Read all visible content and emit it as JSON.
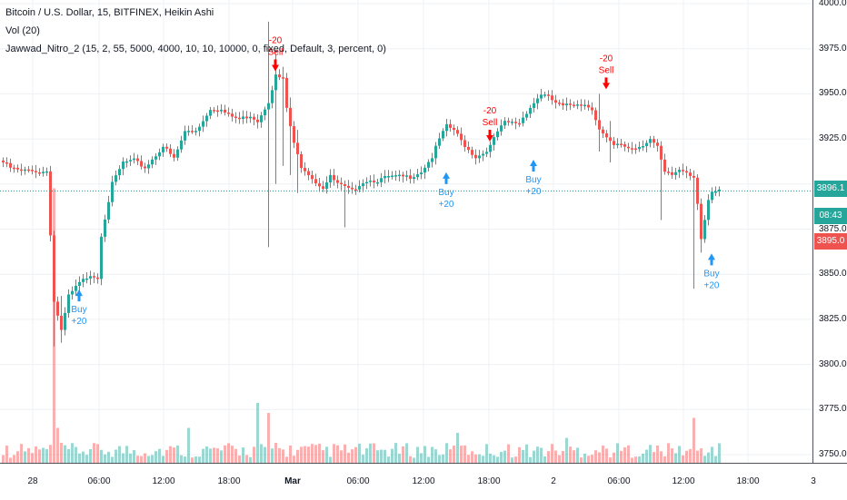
{
  "legend": {
    "title": "Bitcoin / U.S. Dollar, 15, BITFINEX, Heikin Ashi",
    "volume": "Vol (20)",
    "indicator": "Jawwad_Nitro_2 (15, 2, 55, 5000, 4000, 10, 10, 10000, 0, fixed, Default, 3, percent, 0)"
  },
  "price_axis": {
    "ticks": [
      "4000.0",
      "3975.0",
      "3950.0",
      "3925.0",
      "3875.0",
      "3850.0",
      "3825.0",
      "3800.0",
      "3775.0",
      "3750.0"
    ]
  },
  "time_axis": {
    "ticks": [
      "28",
      "06:00",
      "12:00",
      "18:00",
      "Mar",
      "06:00",
      "12:00",
      "18:00",
      "2",
      "06:00",
      "12:00",
      "18:00",
      "3"
    ]
  },
  "badges": {
    "last_price": "3896.1",
    "countdown": "08:43",
    "alt_price": "3895.0"
  },
  "signals": [
    {
      "side": "buy",
      "label": "Buy",
      "qty": "+20"
    },
    {
      "side": "sell",
      "label": "Sell",
      "qty": "-20"
    },
    {
      "side": "buy",
      "label": "Buy",
      "qty": "+20"
    },
    {
      "side": "sell",
      "label": "Sell",
      "qty": "-20"
    },
    {
      "side": "buy",
      "label": "Buy",
      "qty": "+20"
    },
    {
      "side": "sell",
      "label": "Sell",
      "qty": "-20"
    },
    {
      "side": "buy",
      "label": "Buy",
      "qty": "+20"
    }
  ],
  "chart_data": {
    "type": "candlestick",
    "price_range": [
      3745,
      4003
    ],
    "last_price": 3896.1,
    "up_color": "#26a69a",
    "down_color": "#ef5350",
    "signal_buy_color": "#2196f3",
    "signal_sell_color": "#ff0000",
    "grid": true,
    "close_path": [
      [
        0,
        3912
      ],
      [
        2,
        3909
      ],
      [
        5,
        3907
      ],
      [
        8,
        3908
      ],
      [
        10,
        3906
      ],
      [
        12,
        3908
      ],
      [
        14,
        3835
      ],
      [
        16,
        3818
      ],
      [
        18,
        3838
      ],
      [
        21,
        3845
      ],
      [
        24,
        3850
      ],
      [
        26,
        3848
      ],
      [
        27,
        3872
      ],
      [
        30,
        3900
      ],
      [
        33,
        3912
      ],
      [
        36,
        3913
      ],
      [
        39,
        3909
      ],
      [
        42,
        3916
      ],
      [
        44,
        3921
      ],
      [
        47,
        3914
      ],
      [
        50,
        3929
      ],
      [
        53,
        3930
      ],
      [
        55,
        3935
      ],
      [
        57,
        3942
      ],
      [
        60,
        3941
      ],
      [
        62,
        3938
      ],
      [
        65,
        3936
      ],
      [
        68,
        3938
      ],
      [
        70,
        3935
      ],
      [
        73,
        3946
      ],
      [
        75,
        3960
      ],
      [
        77,
        3958
      ],
      [
        78,
        3942
      ],
      [
        80,
        3922
      ],
      [
        82,
        3910
      ],
      [
        84,
        3906
      ],
      [
        86,
        3901
      ],
      [
        88,
        3898
      ],
      [
        90,
        3904
      ],
      [
        92,
        3900
      ],
      [
        94,
        3898
      ],
      [
        96,
        3896
      ],
      [
        98,
        3900
      ],
      [
        100,
        3902
      ],
      [
        103,
        3902
      ],
      [
        106,
        3904
      ],
      [
        109,
        3904
      ],
      [
        112,
        3904
      ],
      [
        115,
        3907
      ],
      [
        118,
        3915
      ],
      [
        120,
        3925
      ],
      [
        122,
        3932
      ],
      [
        124,
        3930
      ],
      [
        126,
        3924
      ],
      [
        128,
        3919
      ],
      [
        130,
        3915
      ],
      [
        132,
        3917
      ],
      [
        134,
        3921
      ],
      [
        136,
        3929
      ],
      [
        138,
        3934
      ],
      [
        140,
        3934
      ],
      [
        142,
        3934
      ],
      [
        144,
        3940
      ],
      [
        146,
        3945
      ],
      [
        148,
        3950
      ],
      [
        150,
        3948
      ],
      [
        152,
        3945
      ],
      [
        154,
        3943
      ],
      [
        156,
        3944
      ],
      [
        158,
        3945
      ],
      [
        160,
        3944
      ],
      [
        162,
        3942
      ],
      [
        164,
        3930
      ],
      [
        166,
        3925
      ],
      [
        168,
        3921
      ],
      [
        170,
        3922
      ],
      [
        172,
        3920
      ],
      [
        174,
        3920
      ],
      [
        176,
        3922
      ],
      [
        178,
        3925
      ],
      [
        180,
        3920
      ],
      [
        182,
        3906
      ],
      [
        184,
        3905
      ],
      [
        186,
        3908
      ],
      [
        188,
        3907
      ],
      [
        190,
        3904
      ],
      [
        191,
        3890
      ],
      [
        192,
        3870
      ],
      [
        193,
        3880
      ],
      [
        194,
        3890
      ],
      [
        195,
        3895
      ],
      [
        197,
        3896
      ]
    ],
    "spikes": [
      {
        "i": 14,
        "low": 3810,
        "high": 3842
      },
      {
        "i": 16,
        "low": 3812,
        "high": 3838
      },
      {
        "i": 73,
        "low": 3865,
        "high": 3990
      },
      {
        "i": 75,
        "low": 3900,
        "high": 3972
      },
      {
        "i": 77,
        "low": 3910,
        "high": 3965
      },
      {
        "i": 79,
        "low": 3905,
        "high": 3948
      },
      {
        "i": 81,
        "low": 3895,
        "high": 3930
      },
      {
        "i": 94,
        "low": 3876,
        "high": 3902
      },
      {
        "i": 164,
        "low": 3918,
        "high": 3950
      },
      {
        "i": 167,
        "low": 3912,
        "high": 3935
      },
      {
        "i": 181,
        "low": 3880,
        "high": 3915
      },
      {
        "i": 190,
        "low": 3842,
        "high": 3893
      },
      {
        "i": 192,
        "low": 3862,
        "high": 3892
      }
    ],
    "volume_spikes": [
      {
        "i": 14,
        "v": 55,
        "side": "down"
      },
      {
        "i": 15,
        "v": 7,
        "side": "down"
      },
      {
        "i": 51,
        "v": 7,
        "side": "up"
      },
      {
        "i": 70,
        "v": 12,
        "side": "up"
      },
      {
        "i": 73,
        "v": 10,
        "side": "down"
      },
      {
        "i": 75,
        "v": 4,
        "side": "down"
      },
      {
        "i": 125,
        "v": 6,
        "side": "up"
      },
      {
        "i": 155,
        "v": 5,
        "side": "up"
      },
      {
        "i": 190,
        "v": 9,
        "side": "down"
      }
    ],
    "signal_positions": [
      {
        "i": 21,
        "price": 3845,
        "side": "buy"
      },
      {
        "i": 75,
        "price": 3960,
        "side": "sell"
      },
      {
        "i": 122,
        "price": 3910,
        "side": "buy"
      },
      {
        "i": 134,
        "price": 3921,
        "side": "sell"
      },
      {
        "i": 146,
        "price": 3917,
        "side": "buy"
      },
      {
        "i": 166,
        "price": 3950,
        "side": "sell"
      },
      {
        "i": 195,
        "price": 3865,
        "side": "buy"
      }
    ]
  }
}
